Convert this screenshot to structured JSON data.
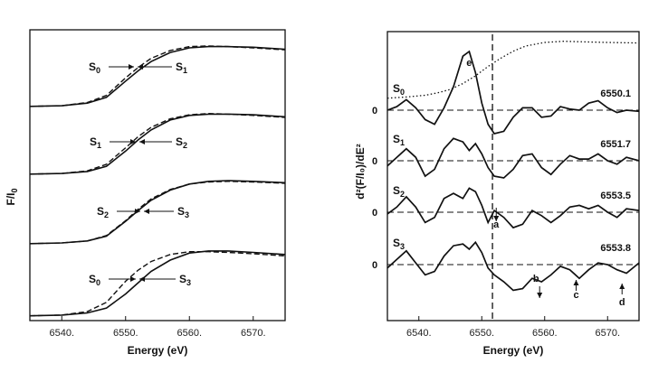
{
  "chart_data": [
    {
      "type": "line",
      "xlabel": "Energy (eV)",
      "ylabel": "F/I",
      "ylabel_sub": "0",
      "xlim": [
        6535,
        6575
      ],
      "xticks": [
        6540,
        6550,
        6560,
        6570
      ],
      "xtick_labels": [
        "6540.",
        "6550.",
        "6560.",
        "6570."
      ],
      "grid": false,
      "spectra": [
        {
          "labels": [
            {
              "letter": "S",
              "sub": "0"
            },
            {
              "letter": "S",
              "sub": "1"
            }
          ],
          "x": [
            6535,
            6540,
            6544,
            6547,
            6550,
            6552,
            6554,
            6557,
            6560,
            6563,
            6566,
            6570,
            6575
          ],
          "solid": [
            0.03,
            0.04,
            0.08,
            0.17,
            0.42,
            0.58,
            0.72,
            0.86,
            0.93,
            0.95,
            0.95,
            0.94,
            0.91
          ],
          "dashed": [
            0.03,
            0.04,
            0.09,
            0.2,
            0.47,
            0.63,
            0.77,
            0.89,
            0.95,
            0.96,
            0.95,
            0.93,
            0.9
          ]
        },
        {
          "labels": [
            {
              "letter": "S",
              "sub": "1"
            },
            {
              "letter": "S",
              "sub": "2"
            }
          ],
          "x": [
            6535,
            6540,
            6544,
            6547,
            6550,
            6552,
            6554,
            6557,
            6560,
            6563,
            6566,
            6570,
            6575
          ],
          "solid": [
            0.03,
            0.04,
            0.07,
            0.15,
            0.38,
            0.55,
            0.7,
            0.85,
            0.92,
            0.94,
            0.94,
            0.93,
            0.9
          ],
          "dashed": [
            0.03,
            0.04,
            0.08,
            0.18,
            0.43,
            0.6,
            0.74,
            0.87,
            0.93,
            0.95,
            0.94,
            0.92,
            0.89
          ]
        },
        {
          "labels": [
            {
              "letter": "S",
              "sub": "2"
            },
            {
              "letter": "S",
              "sub": "3"
            }
          ],
          "x": [
            6535,
            6540,
            6544,
            6547,
            6550,
            6552,
            6554,
            6557,
            6560,
            6563,
            6566,
            6570,
            6575
          ],
          "solid": [
            0.03,
            0.04,
            0.07,
            0.14,
            0.36,
            0.52,
            0.67,
            0.82,
            0.91,
            0.95,
            0.96,
            0.95,
            0.93
          ],
          "dashed": [
            0.03,
            0.04,
            0.07,
            0.15,
            0.37,
            0.54,
            0.69,
            0.83,
            0.91,
            0.94,
            0.95,
            0.94,
            0.92
          ]
        },
        {
          "labels": [
            {
              "letter": "S",
              "sub": "0"
            },
            {
              "letter": "S",
              "sub": "3"
            }
          ],
          "x": [
            6535,
            6540,
            6544,
            6547,
            6550,
            6552,
            6554,
            6557,
            6560,
            6563,
            6566,
            6570,
            6575
          ],
          "solid": [
            0.03,
            0.04,
            0.07,
            0.14,
            0.34,
            0.5,
            0.66,
            0.82,
            0.92,
            0.95,
            0.95,
            0.93,
            0.9
          ],
          "dashed": [
            0.03,
            0.04,
            0.09,
            0.22,
            0.52,
            0.68,
            0.8,
            0.9,
            0.94,
            0.94,
            0.93,
            0.91,
            0.88
          ]
        }
      ]
    },
    {
      "type": "line",
      "xlabel": "Energy (eV)",
      "ylabel": "d²(F/I₀)/dE²",
      "xlim": [
        6535,
        6575
      ],
      "xticks": [
        6540,
        6550,
        6560,
        6570
      ],
      "xtick_labels": [
        "6540.",
        "6550.",
        "6560.",
        "6570."
      ],
      "grid": false,
      "vertical_dashed_line_x": 6551.7,
      "zero_label": "0",
      "series": [
        {
          "state": {
            "letter": "S",
            "sub": "0"
          },
          "inflection_label": "6550.1",
          "x": [
            6535,
            6536.5,
            6538,
            6539.5,
            6541,
            6542.5,
            6544,
            6545.5,
            6547,
            6548,
            6549,
            6550,
            6551,
            6552,
            6553.5,
            6555,
            6556.5,
            6558,
            6559.5,
            6561,
            6562.5,
            6564,
            6565.5,
            6567,
            6568.5,
            6570,
            6571.5,
            6573,
            6575
          ],
          "y": [
            0,
            0.3,
            0.9,
            0.2,
            -0.8,
            -1.2,
            0.2,
            2.0,
            4.6,
            5.0,
            3.2,
            0.6,
            -1.2,
            -2.0,
            -1.8,
            -0.6,
            0.2,
            0.2,
            -0.6,
            -0.5,
            0.3,
            0.1,
            0.0,
            0.6,
            0.8,
            0.2,
            -0.2,
            0.0,
            -0.1
          ]
        },
        {
          "state": {
            "letter": "S",
            "sub": "1"
          },
          "inflection_label": "6551.7",
          "x": [
            6535,
            6536.5,
            6538,
            6539.5,
            6541,
            6542.5,
            6544,
            6545.5,
            6547,
            6548,
            6549,
            6550,
            6551,
            6552,
            6553.5,
            6555,
            6556.5,
            6558,
            6559.5,
            6561,
            6562.5,
            6564,
            6565.5,
            6567,
            6568.5,
            6570,
            6571.5,
            6573,
            6575
          ],
          "y": [
            -0.3,
            0.2,
            0.7,
            0.2,
            -0.9,
            -0.5,
            0.7,
            1.3,
            1.1,
            0.6,
            1.0,
            0.4,
            -0.4,
            -0.9,
            -1.0,
            -0.5,
            0.3,
            0.4,
            -0.4,
            -0.8,
            -0.2,
            0.3,
            0.1,
            0.1,
            0.4,
            0.0,
            -0.2,
            0.2,
            0.0
          ]
        },
        {
          "state": {
            "letter": "S",
            "sub": "2"
          },
          "inflection_label": "6553.5",
          "x": [
            6535,
            6536.5,
            6538,
            6539.5,
            6541,
            6542.5,
            6544,
            6545.5,
            6547,
            6548,
            6549,
            6550,
            6551,
            6552,
            6553.5,
            6555,
            6556.5,
            6558,
            6559.5,
            6561,
            6562.5,
            6564,
            6565.5,
            6567,
            6568.5,
            6570,
            6571.5,
            6573,
            6575
          ],
          "y": [
            -0.1,
            0.3,
            0.9,
            0.3,
            -0.6,
            -0.3,
            0.8,
            1.1,
            0.8,
            1.4,
            1.2,
            0.4,
            -0.6,
            0.1,
            -0.3,
            -0.9,
            -0.7,
            0.1,
            -0.2,
            -0.6,
            -0.2,
            0.3,
            0.4,
            0.2,
            0.4,
            0.0,
            -0.3,
            0.2,
            0.1
          ]
        },
        {
          "state": {
            "letter": "S",
            "sub": "3"
          },
          "inflection_label": "6553.8",
          "x": [
            6535,
            6536.5,
            6538,
            6539.5,
            6541,
            6542.5,
            6544,
            6545.5,
            6547,
            6548,
            6549,
            6550,
            6551,
            6552,
            6553.5,
            6555,
            6556.5,
            6558,
            6559.5,
            6561,
            6562.5,
            6564,
            6565.5,
            6567,
            6568.5,
            6570,
            6571.5,
            6573,
            6575
          ],
          "y": [
            -0.2,
            0.3,
            0.8,
            0.1,
            -0.6,
            -0.4,
            0.5,
            1.1,
            1.2,
            0.9,
            1.3,
            0.7,
            -0.2,
            -0.6,
            -1.0,
            -1.5,
            -1.4,
            -0.8,
            -1.0,
            -0.6,
            -0.1,
            -0.3,
            -0.8,
            -0.3,
            0.1,
            0.0,
            -0.3,
            -0.5,
            0.1
          ]
        }
      ],
      "s0_absorption_dotted": {
        "x": [
          6535,
          6538,
          6541,
          6543,
          6545,
          6547,
          6549,
          6551,
          6553,
          6555,
          6557,
          6560,
          6563,
          6566,
          6570,
          6575
        ],
        "y": [
          0.02,
          0.04,
          0.07,
          0.11,
          0.17,
          0.27,
          0.4,
          0.56,
          0.7,
          0.82,
          0.91,
          0.97,
          0.99,
          0.98,
          0.97,
          0.96
        ]
      },
      "annotations": [
        {
          "text": "a",
          "x": 6552.3
        },
        {
          "text": "b",
          "x": 6559.2
        },
        {
          "text": "c",
          "x": 6565.0
        },
        {
          "text": "d",
          "x": 6572.3
        },
        {
          "text": "e",
          "x": 6548.0
        }
      ]
    }
  ]
}
